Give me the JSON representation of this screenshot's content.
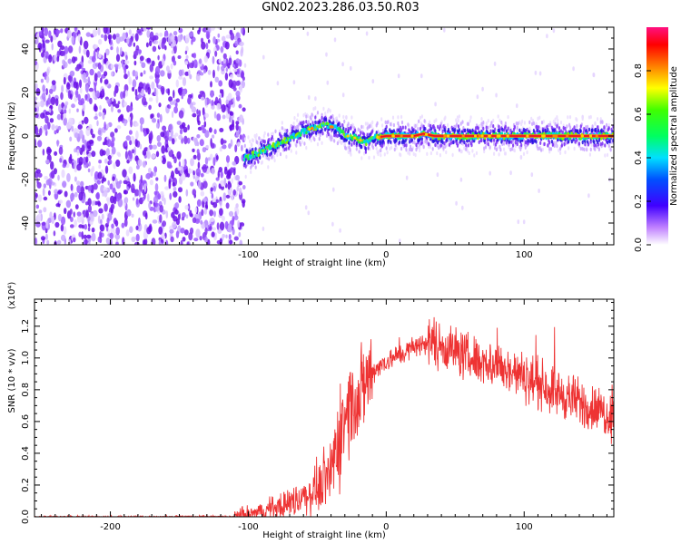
{
  "title": "GN02.2023.286.03.50.R03",
  "chart_data": [
    {
      "type": "heatmap",
      "xlabel": "Height of straight line (km)",
      "ylabel": "Frequency (Hz)",
      "xlim": [
        -255,
        165
      ],
      "ylim": [
        -50,
        50
      ],
      "xticks": [
        -200,
        -100,
        0,
        100
      ],
      "yticks": [
        -40,
        -20,
        0,
        20,
        40
      ],
      "noise_region": [
        -255,
        -103
      ],
      "signal_track": {
        "x": [
          -103,
          -90,
          -80,
          -70,
          -60,
          -52,
          -45,
          -38,
          -33,
          -28,
          -22,
          -15,
          -10,
          0,
          10,
          20,
          27,
          35,
          45,
          60,
          80,
          100,
          120,
          140,
          165
        ],
        "y": [
          -10,
          -7,
          -4,
          -1,
          2,
          4,
          5,
          4,
          2,
          0,
          -1,
          -3,
          -1,
          0,
          0,
          0,
          1,
          0,
          0,
          0,
          0,
          0,
          0,
          0,
          0
        ]
      },
      "colorbar": {
        "label": "Normalized spectral amplitude",
        "range": [
          0.0,
          1.0
        ],
        "ticks": [
          "0.0",
          "0.2",
          "0.4",
          "0.6",
          "0.8"
        ]
      }
    },
    {
      "type": "line",
      "xlabel": "Height of straight line (km)",
      "ylabel": "SNR (10 * v/v)",
      "scale_label": "(x10⁴)",
      "xlim": [
        -255,
        165
      ],
      "ylim": [
        0,
        1.37
      ],
      "xticks": [
        -200,
        -100,
        0,
        100
      ],
      "yticks": [
        "0.0",
        "0.2",
        "0.4",
        "0.6",
        "0.8",
        "1.0",
        "1.2"
      ],
      "series": [
        {
          "name": "SNR",
          "color": "#ee3333",
          "x": [
            -255,
            -110,
            -95,
            -80,
            -60,
            -45,
            -35,
            -28,
            -20,
            -15,
            -10,
            0,
            10,
            20,
            30,
            40,
            50,
            60,
            70,
            80,
            90,
            100,
            110,
            120,
            130,
            140,
            150,
            160,
            165
          ],
          "y": [
            0.0,
            0.0,
            0.02,
            0.06,
            0.12,
            0.22,
            0.45,
            0.7,
            0.75,
            0.85,
            0.92,
            0.98,
            1.02,
            1.07,
            1.1,
            1.08,
            1.05,
            1.0,
            0.98,
            0.95,
            0.92,
            0.88,
            0.84,
            0.8,
            0.76,
            0.72,
            0.68,
            0.65,
            0.63
          ]
        }
      ]
    }
  ]
}
